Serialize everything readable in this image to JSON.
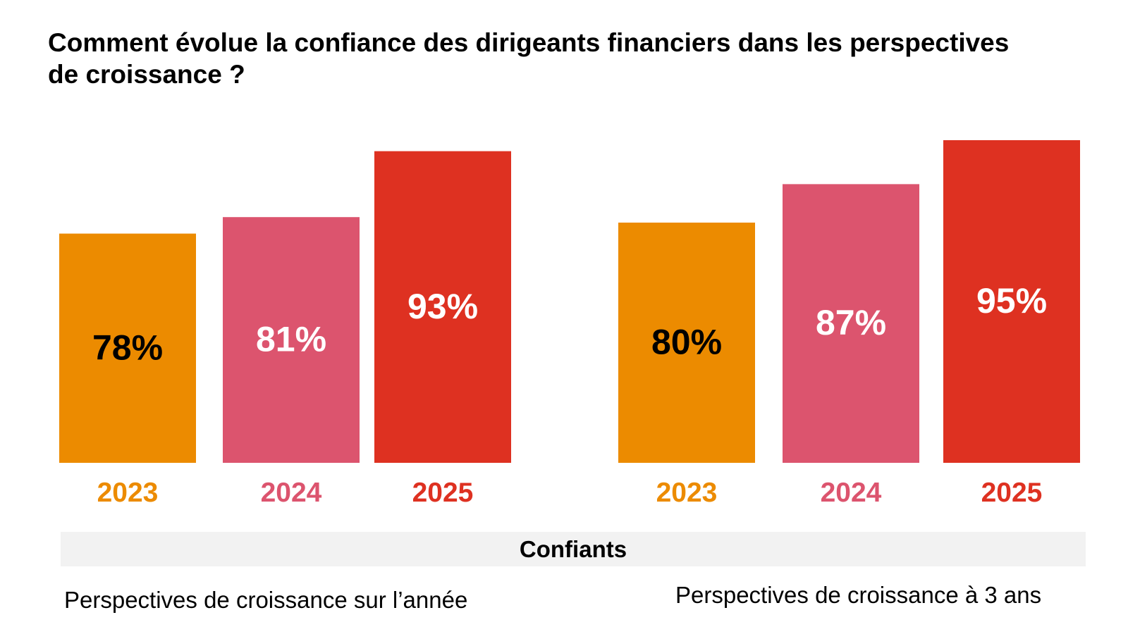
{
  "title": "Comment évolue la confiance des dirigeants financiers dans les perspectives de croissance ?",
  "band_label": "Confiants",
  "colors": {
    "2023": "#ec8b00",
    "2024": "#dc546e",
    "2025": "#de3121",
    "text_dark": "#000000",
    "text_light": "#ffffff",
    "band": "#f2f2f2"
  },
  "chart_data": {
    "type": "bar",
    "categories": [
      "2023",
      "2024",
      "2025"
    ],
    "value_suffix": "%",
    "groups": [
      {
        "name": "Perspectives de croissance sur l’année",
        "values": [
          78,
          81,
          93
        ]
      },
      {
        "name": "Perspectives de croissance à 3 ans",
        "values": [
          80,
          87,
          95
        ]
      }
    ]
  }
}
